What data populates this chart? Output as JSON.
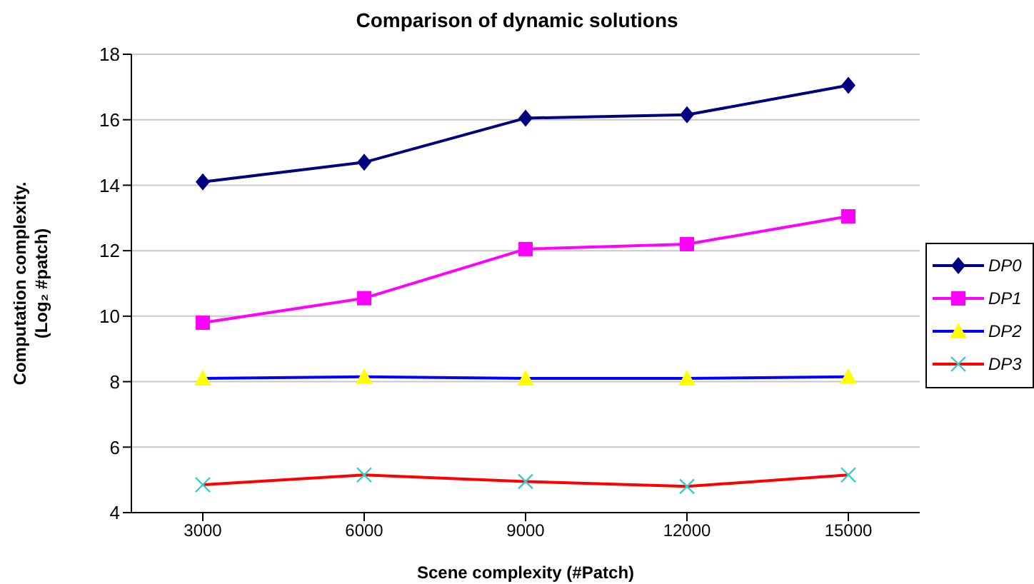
{
  "chart_data": {
    "type": "line",
    "title": "Comparison of dynamic solutions",
    "xlabel": "Scene complexity (#Patch)",
    "ylabel": "Computation complexity. (Log₂ #patch)",
    "categories": [
      "3000",
      "6000",
      "9000",
      "12000",
      "15000"
    ],
    "series": [
      {
        "name": "DP0",
        "color": "#000080",
        "marker": "diamond",
        "colors": [
          "#000080",
          "#000080",
          "#000080",
          "#000080",
          "#000080"
        ],
        "values": [
          14.1,
          14.7,
          16.05,
          16.15,
          17.05
        ]
      },
      {
        "name": "DP1",
        "color": "#ff00ff",
        "marker": "square",
        "colors": [
          "#ff00ff",
          "#ff00ff",
          "#ff00ff",
          "#ff00ff",
          "#ff00ff"
        ],
        "values": [
          9.8,
          10.55,
          12.05,
          12.2,
          13.05
        ]
      },
      {
        "name": "DP2",
        "color": "#0000ff",
        "marker": "triangle",
        "colors": [
          "#ffff00",
          "#ffff00",
          "#ffff00",
          "#ffff00",
          "#ffff00"
        ],
        "values": [
          8.1,
          8.15,
          8.1,
          8.1,
          8.15
        ]
      },
      {
        "name": "DP3",
        "color": "#ff0000",
        "marker": "cross",
        "colors": [
          "#33cccc",
          "#33cccc",
          "#33cccc",
          "#33cccc",
          "#33cccc"
        ],
        "values": [
          4.85,
          5.15,
          4.95,
          4.8,
          5.15
        ]
      }
    ],
    "ylim": [
      4,
      18
    ],
    "yticks": [
      4,
      6,
      8,
      10,
      12,
      14,
      16,
      18
    ],
    "grid": "y",
    "legend": "right",
    "line_style": "solid"
  }
}
